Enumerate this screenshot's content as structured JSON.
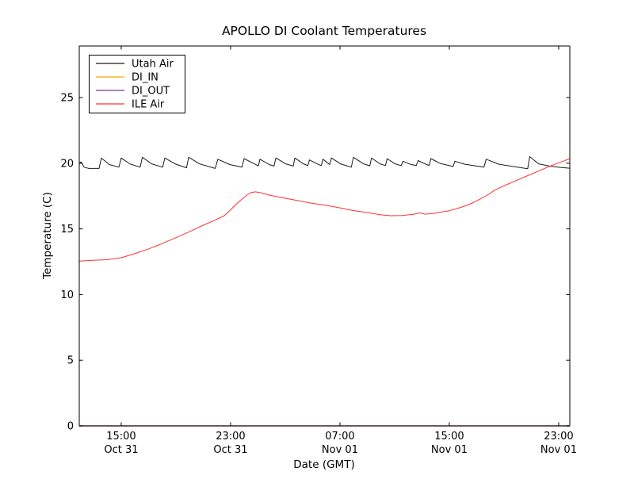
{
  "figure": {
    "title": "APOLLO DI Coolant Temperatures",
    "xlabel": "Date (GMT)",
    "ylabel": "Temperature (C)"
  },
  "colors": {
    "axis": "#000000",
    "bottom_spine_blend": "#574048",
    "utah_air": "#1a1a1a",
    "di_in": "#ffa500",
    "di_out": "#8b2fa0",
    "ile_air": "#ff3030"
  },
  "chart_data": {
    "type": "line",
    "title": "APOLLO DI Coolant Temperatures",
    "xlabel": "Date (GMT)",
    "ylabel": "Temperature (C)",
    "x_unit": "hours since ~12:00 Oct 31 (GMT)",
    "xlim": [
      0,
      35.88
    ],
    "ylim": [
      0,
      28.9
    ],
    "grid": false,
    "legend_position": "upper left",
    "x_ticks": [
      {
        "h": 3.07,
        "time": "15:00",
        "date": "Oct 31"
      },
      {
        "h": 11.07,
        "time": "23:00",
        "date": "Oct 31"
      },
      {
        "h": 19.07,
        "time": "07:00",
        "date": "Nov 01"
      },
      {
        "h": 27.07,
        "time": "15:00",
        "date": "Nov 01"
      },
      {
        "h": 35.07,
        "time": "23:00",
        "date": "Nov 01"
      }
    ],
    "y_ticks": [
      {
        "v": 0,
        "label": "0"
      },
      {
        "v": 5,
        "label": "5"
      },
      {
        "v": 10,
        "label": "10"
      },
      {
        "v": 15,
        "label": "15"
      },
      {
        "v": 20,
        "label": "20"
      },
      {
        "v": 25,
        "label": "25"
      }
    ],
    "series": [
      {
        "name": "Utah Air",
        "color": "#1a1a1a",
        "width": 1,
        "points": [
          [
            0,
            19.95
          ],
          [
            0.12,
            20.1
          ],
          [
            0.35,
            19.7
          ],
          [
            0.7,
            19.6
          ],
          [
            1.45,
            19.6
          ],
          [
            1.62,
            20.4
          ],
          [
            2.2,
            19.9
          ],
          [
            2.9,
            19.7
          ],
          [
            3.07,
            20.4
          ],
          [
            3.7,
            19.95
          ],
          [
            4.45,
            19.7
          ],
          [
            4.62,
            20.45
          ],
          [
            5.3,
            19.95
          ],
          [
            6.1,
            19.7
          ],
          [
            6.26,
            20.4
          ],
          [
            7,
            19.95
          ],
          [
            7.85,
            19.65
          ],
          [
            8,
            20.45
          ],
          [
            8.8,
            19.95
          ],
          [
            9.95,
            19.6
          ],
          [
            10.14,
            20.3
          ],
          [
            11,
            19.9
          ],
          [
            11.9,
            19.7
          ],
          [
            12.06,
            20.35
          ],
          [
            12.8,
            19.95
          ],
          [
            13.1,
            19.8
          ],
          [
            13.22,
            20.3
          ],
          [
            13.9,
            19.9
          ],
          [
            14.25,
            19.78
          ],
          [
            14.38,
            20.4
          ],
          [
            15.1,
            19.95
          ],
          [
            15.65,
            19.78
          ],
          [
            15.77,
            20.4
          ],
          [
            16.4,
            19.95
          ],
          [
            16.72,
            19.82
          ],
          [
            16.84,
            20.25
          ],
          [
            17.4,
            19.95
          ],
          [
            17.7,
            19.82
          ],
          [
            17.83,
            20.3
          ],
          [
            18.32,
            19.9
          ],
          [
            18.45,
            20.4
          ],
          [
            19.1,
            19.95
          ],
          [
            19.9,
            19.7
          ],
          [
            20.05,
            20.45
          ],
          [
            20.8,
            19.95
          ],
          [
            21.25,
            19.8
          ],
          [
            21.38,
            20.4
          ],
          [
            22,
            19.95
          ],
          [
            22.4,
            19.82
          ],
          [
            22.52,
            20.35
          ],
          [
            23.1,
            19.95
          ],
          [
            23.55,
            19.82
          ],
          [
            23.68,
            20.15
          ],
          [
            24.2,
            19.92
          ],
          [
            24.65,
            19.82
          ],
          [
            24.78,
            20.2
          ],
          [
            25.35,
            19.92
          ],
          [
            25.6,
            19.83
          ],
          [
            25.72,
            20.35
          ],
          [
            26.4,
            19.98
          ],
          [
            27.35,
            19.75
          ],
          [
            27.48,
            20.15
          ],
          [
            28.2,
            19.92
          ],
          [
            29.6,
            19.7
          ],
          [
            29.77,
            20.3
          ],
          [
            30.7,
            19.92
          ],
          [
            32.8,
            19.58
          ],
          [
            32.95,
            20.5
          ],
          [
            33.6,
            19.95
          ],
          [
            34.4,
            19.78
          ],
          [
            35.2,
            19.68
          ],
          [
            35.88,
            19.62
          ]
        ]
      },
      {
        "name": "DI_IN",
        "color": "#ffa500",
        "width": 1,
        "points": [
          [
            0,
            0
          ],
          [
            35.88,
            0
          ]
        ]
      },
      {
        "name": "DI_OUT",
        "color": "#8b2fa0",
        "width": 1,
        "points": [
          [
            0,
            0
          ],
          [
            35.88,
            0
          ]
        ]
      },
      {
        "name": "ILE Air",
        "color": "#ff3030",
        "width": 1,
        "points": [
          [
            0,
            12.55
          ],
          [
            1,
            12.6
          ],
          [
            2,
            12.65
          ],
          [
            3.07,
            12.8
          ],
          [
            4,
            13.1
          ],
          [
            5,
            13.45
          ],
          [
            6,
            13.85
          ],
          [
            7,
            14.3
          ],
          [
            8,
            14.75
          ],
          [
            9,
            15.25
          ],
          [
            9.9,
            15.65
          ],
          [
            10.6,
            16.0
          ],
          [
            11.07,
            16.45
          ],
          [
            11.6,
            17.0
          ],
          [
            12,
            17.35
          ],
          [
            12.3,
            17.6
          ],
          [
            12.6,
            17.78
          ],
          [
            12.9,
            17.82
          ],
          [
            13.3,
            17.75
          ],
          [
            14,
            17.55
          ],
          [
            15,
            17.35
          ],
          [
            16,
            17.15
          ],
          [
            17,
            16.95
          ],
          [
            18,
            16.8
          ],
          [
            19.07,
            16.6
          ],
          [
            20,
            16.4
          ],
          [
            21,
            16.25
          ],
          [
            22,
            16.08
          ],
          [
            22.8,
            16.0
          ],
          [
            23.6,
            16.02
          ],
          [
            24.4,
            16.1
          ],
          [
            24.9,
            16.22
          ],
          [
            25.3,
            16.12
          ],
          [
            25.9,
            16.18
          ],
          [
            26.5,
            16.28
          ],
          [
            27.07,
            16.38
          ],
          [
            27.8,
            16.6
          ],
          [
            28.5,
            16.85
          ],
          [
            29.2,
            17.2
          ],
          [
            29.9,
            17.6
          ],
          [
            30.4,
            17.95
          ],
          [
            31,
            18.25
          ],
          [
            31.9,
            18.65
          ],
          [
            32.8,
            19.05
          ],
          [
            33.7,
            19.45
          ],
          [
            34.6,
            19.85
          ],
          [
            35.4,
            20.15
          ],
          [
            35.88,
            20.35
          ]
        ]
      }
    ],
    "legend_entries": [
      "Utah Air",
      "DI_IN",
      "DI_OUT",
      "ILE Air"
    ]
  }
}
